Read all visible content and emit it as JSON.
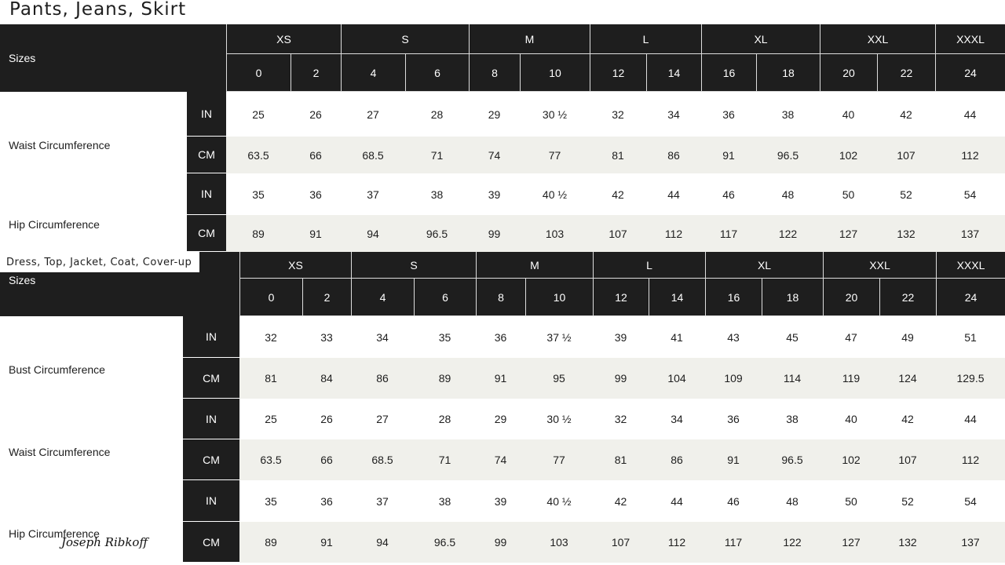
{
  "tables": [
    {
      "title": "Pants, Jeans, Skirt",
      "sizes_label": "Sizes",
      "size_groups": [
        {
          "label": "XS",
          "sizes": [
            "0",
            "2"
          ]
        },
        {
          "label": "S",
          "sizes": [
            "4",
            "6"
          ]
        },
        {
          "label": "M",
          "sizes": [
            "8",
            "10"
          ]
        },
        {
          "label": "L",
          "sizes": [
            "12",
            "14"
          ]
        },
        {
          "label": "XL",
          "sizes": [
            "16",
            "18"
          ]
        },
        {
          "label": "XXL",
          "sizes": [
            "20",
            "22"
          ]
        },
        {
          "label": "XXXL",
          "sizes": [
            "24"
          ]
        }
      ],
      "measurements": [
        {
          "label": "Waist Circumference",
          "rows": [
            {
              "unit": "IN",
              "values": [
                "25",
                "26",
                "27",
                "28",
                "29",
                "30 ½",
                "32",
                "34",
                "36",
                "38",
                "40",
                "42",
                "44"
              ]
            },
            {
              "unit": "CM",
              "values": [
                "63.5",
                "66",
                "68.5",
                "71",
                "74",
                "77",
                "81",
                "86",
                "91",
                "96.5",
                "102",
                "107",
                "112"
              ]
            }
          ]
        },
        {
          "label": "Hip Circumference",
          "rows": [
            {
              "unit": "IN",
              "values": [
                "35",
                "36",
                "37",
                "38",
                "39",
                "40 ½",
                "42",
                "44",
                "46",
                "48",
                "50",
                "52",
                "54"
              ]
            },
            {
              "unit": "CM",
              "values": [
                "89",
                "91",
                "94",
                "96.5",
                "99",
                "103",
                "107",
                "112",
                "117",
                "122",
                "127",
                "132",
                "137"
              ]
            }
          ]
        }
      ]
    },
    {
      "title": "Dress, Top, Jacket, Coat, Cover-up",
      "sizes_label": "Sizes",
      "size_groups": [
        {
          "label": "XS",
          "sizes": [
            "0",
            "2"
          ]
        },
        {
          "label": "S",
          "sizes": [
            "4",
            "6"
          ]
        },
        {
          "label": "M",
          "sizes": [
            "8",
            "10"
          ]
        },
        {
          "label": "L",
          "sizes": [
            "12",
            "14"
          ]
        },
        {
          "label": "XL",
          "sizes": [
            "16",
            "18"
          ]
        },
        {
          "label": "XXL",
          "sizes": [
            "20",
            "22"
          ]
        },
        {
          "label": "XXXL",
          "sizes": [
            "24"
          ]
        }
      ],
      "measurements": [
        {
          "label": "Bust Circumference",
          "rows": [
            {
              "unit": "IN",
              "values": [
                "32",
                "33",
                "34",
                "35",
                "36",
                "37 ½",
                "39",
                "41",
                "43",
                "45",
                "47",
                "49",
                "51"
              ]
            },
            {
              "unit": "CM",
              "values": [
                "81",
                "84",
                "86",
                "89",
                "91",
                "95",
                "99",
                "104",
                "109",
                "114",
                "119",
                "124",
                "129.5"
              ]
            }
          ]
        },
        {
          "label": "Waist Circumference",
          "rows": [
            {
              "unit": "IN",
              "values": [
                "25",
                "26",
                "27",
                "28",
                "29",
                "30 ½",
                "32",
                "34",
                "36",
                "38",
                "40",
                "42",
                "44"
              ]
            },
            {
              "unit": "CM",
              "values": [
                "63.5",
                "66",
                "68.5",
                "71",
                "74",
                "77",
                "81",
                "86",
                "91",
                "96.5",
                "102",
                "107",
                "112"
              ]
            }
          ]
        },
        {
          "label": "Hip Circumference",
          "rows": [
            {
              "unit": "IN",
              "values": [
                "35",
                "36",
                "37",
                "38",
                "39",
                "40 ½",
                "42",
                "44",
                "46",
                "48",
                "50",
                "52",
                "54"
              ]
            },
            {
              "unit": "CM",
              "values": [
                "89",
                "91",
                "94",
                "96.5",
                "99",
                "103",
                "107",
                "112",
                "117",
                "122",
                "127",
                "132",
                "137"
              ]
            }
          ]
        }
      ]
    }
  ],
  "brand_signature": "Joseph Ribkoff",
  "colors": {
    "header_bg": "#1e1e1e",
    "alt_row_bg": "#f0f0eb"
  }
}
